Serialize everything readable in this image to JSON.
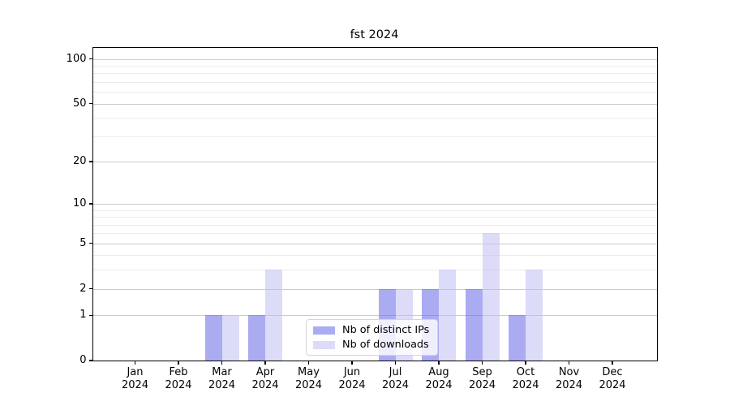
{
  "chart_data": {
    "type": "bar",
    "title": "fst 2024",
    "categories": [
      "Jan",
      "Feb",
      "Mar",
      "Apr",
      "May",
      "Jun",
      "Jul",
      "Aug",
      "Sep",
      "Oct",
      "Nov",
      "Dec"
    ],
    "x_axis": {
      "second_line_year": "2024"
    },
    "series": [
      {
        "name": "Nb of distinct IPs",
        "swatch_color": "#ababf2",
        "fill_color": "rgba(88,88,230,0.5)",
        "values": [
          0,
          0,
          1,
          1,
          0,
          0,
          2,
          2,
          2,
          1,
          0,
          0
        ]
      },
      {
        "name": "Nb of downloads",
        "swatch_color": "#dcdcf8",
        "fill_color": "rgba(186,186,242,0.5)",
        "values": [
          0,
          0,
          1,
          3,
          0,
          0,
          2,
          3,
          6,
          3,
          0,
          0
        ]
      }
    ],
    "y_axis": {
      "scale": "log1p",
      "major_ticks": [
        0,
        1,
        2,
        5,
        10,
        20,
        50,
        100
      ],
      "minor_ticks": [
        3,
        4,
        6,
        7,
        8,
        9,
        30,
        40,
        60,
        70,
        80,
        90
      ],
      "range": [
        0,
        121
      ]
    },
    "grid": {
      "major_color": "#cccccc",
      "minor_color": "#ececec",
      "visible": true
    },
    "legend": {
      "position": "lower-center"
    }
  }
}
